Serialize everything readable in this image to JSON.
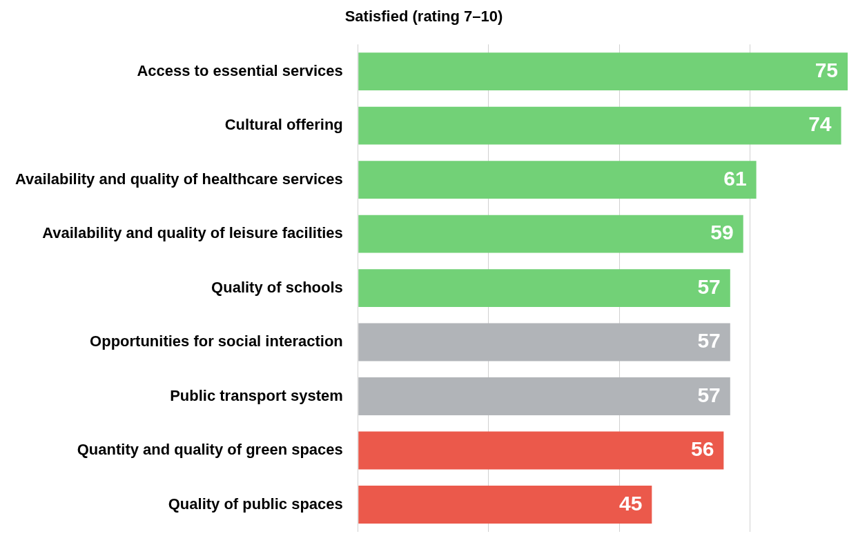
{
  "chart_data": {
    "type": "bar",
    "orientation": "horizontal",
    "title": "Satisfied (rating 7–10)",
    "categories": [
      "Access to essential services",
      "Cultural offering",
      "Availability and quality of healthcare services",
      "Availability and quality of leisure facilities",
      "Quality of schools",
      "Opportunities for social interaction",
      "Public transport system",
      "Quantity and quality of green spaces",
      "Quality of public spaces"
    ],
    "values": [
      75,
      74,
      61,
      59,
      57,
      57,
      57,
      56,
      45
    ],
    "colors": [
      "#72d177",
      "#72d177",
      "#72d177",
      "#72d177",
      "#72d177",
      "#b1b4b8",
      "#b1b4b8",
      "#eb594b",
      "#eb594b"
    ],
    "xlim": [
      0,
      75
    ],
    "xticks": [
      {
        "value": 0,
        "label": null
      },
      {
        "value": 20,
        "label": null
      },
      {
        "value": 40,
        "label": null
      },
      {
        "value": 60,
        "label": null
      }
    ],
    "grid": "x",
    "tick_labels": "y",
    "data_labels": true
  }
}
